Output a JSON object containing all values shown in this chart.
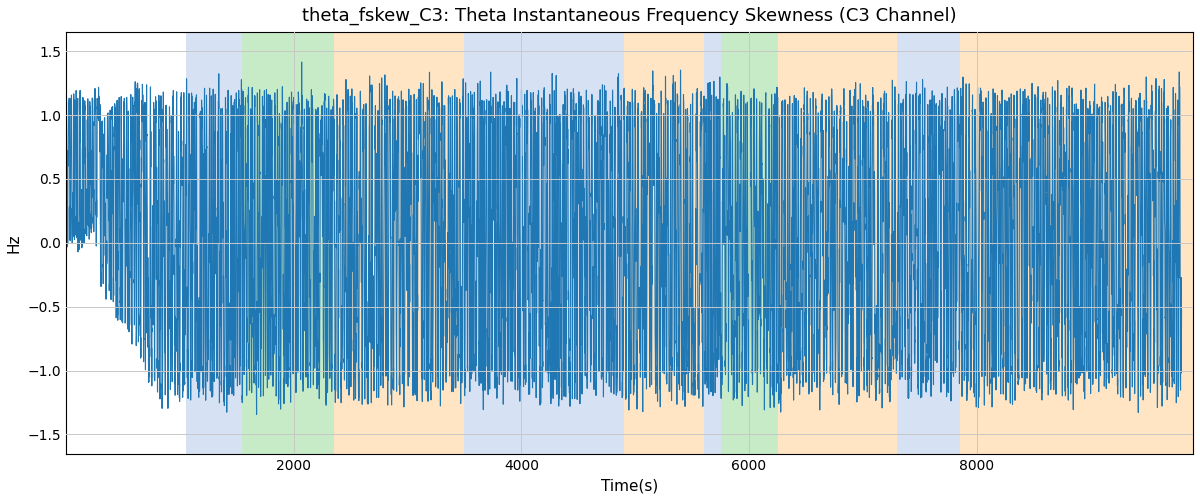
{
  "title": "theta_fskew_C3: Theta Instantaneous Frequency Skewness (C3 Channel)",
  "xlabel": "Time(s)",
  "ylabel": "Hz",
  "ylim": [
    -1.65,
    1.65
  ],
  "xlim": [
    0,
    9900
  ],
  "yticks": [
    -1.5,
    -1.0,
    -0.5,
    0.0,
    0.5,
    1.0,
    1.5
  ],
  "xticks": [
    2000,
    4000,
    6000,
    8000
  ],
  "line_color": "#1f77b4",
  "line_width": 0.8,
  "background_color": "#ffffff",
  "grid_color": "#c8c8c8",
  "title_fontsize": 13,
  "label_fontsize": 11,
  "bands": [
    {
      "xmin": 1050,
      "xmax": 1550,
      "color": "#aec6e8",
      "alpha": 0.5
    },
    {
      "xmin": 1550,
      "xmax": 2350,
      "color": "#90d890",
      "alpha": 0.5
    },
    {
      "xmin": 2350,
      "xmax": 3500,
      "color": "#ffd59e",
      "alpha": 0.6
    },
    {
      "xmin": 3500,
      "xmax": 4900,
      "color": "#aec6e8",
      "alpha": 0.5
    },
    {
      "xmin": 4900,
      "xmax": 5600,
      "color": "#ffd59e",
      "alpha": 0.6
    },
    {
      "xmin": 5600,
      "xmax": 5750,
      "color": "#aec6e8",
      "alpha": 0.5
    },
    {
      "xmin": 5750,
      "xmax": 6250,
      "color": "#90d890",
      "alpha": 0.5
    },
    {
      "xmin": 6250,
      "xmax": 7300,
      "color": "#ffd59e",
      "alpha": 0.6
    },
    {
      "xmin": 7300,
      "xmax": 7850,
      "color": "#aec6e8",
      "alpha": 0.5
    },
    {
      "xmin": 7850,
      "xmax": 8750,
      "color": "#ffd59e",
      "alpha": 0.6
    },
    {
      "xmin": 8750,
      "xmax": 9900,
      "color": "#ffd59e",
      "alpha": 0.6
    }
  ],
  "n_points": 9800,
  "seed": 17
}
